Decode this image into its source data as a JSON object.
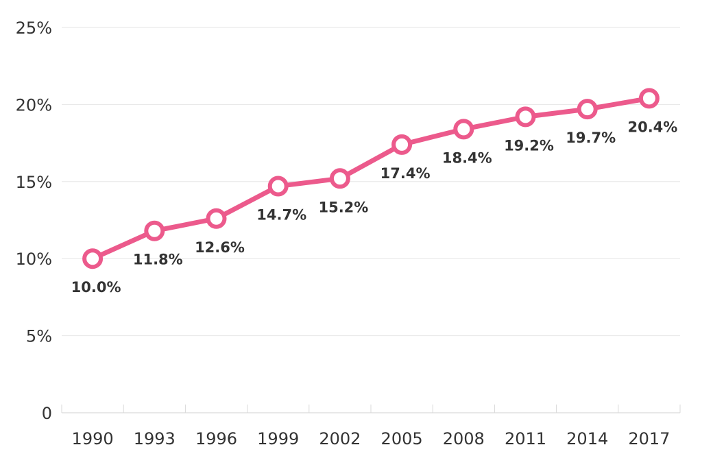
{
  "chart_data": {
    "type": "line",
    "title": "",
    "xlabel": "",
    "ylabel": "",
    "categories": [
      "1990",
      "1993",
      "1996",
      "1999",
      "2002",
      "2005",
      "2008",
      "2011",
      "2014",
      "2017"
    ],
    "series": [
      {
        "values": [
          10.0,
          11.8,
          12.6,
          14.7,
          15.2,
          17.4,
          18.4,
          19.2,
          19.7,
          20.4
        ],
        "data_labels": [
          "10.0%",
          "11.8%",
          "12.6%",
          "14.7%",
          "15.2%",
          "17.4%",
          "18.4%",
          "19.2%",
          "19.7%",
          "20.4%"
        ],
        "color": "#ec5a8c"
      }
    ],
    "ylim": [
      0,
      25
    ],
    "y_ticks": [
      {
        "value": 0,
        "label": "0"
      },
      {
        "value": 5,
        "label": "5%"
      },
      {
        "value": 10,
        "label": "10%"
      },
      {
        "value": 15,
        "label": "15%"
      },
      {
        "value": 20,
        "label": "20%"
      },
      {
        "value": 25,
        "label": "25%"
      }
    ],
    "grid": true,
    "legend": "none"
  }
}
